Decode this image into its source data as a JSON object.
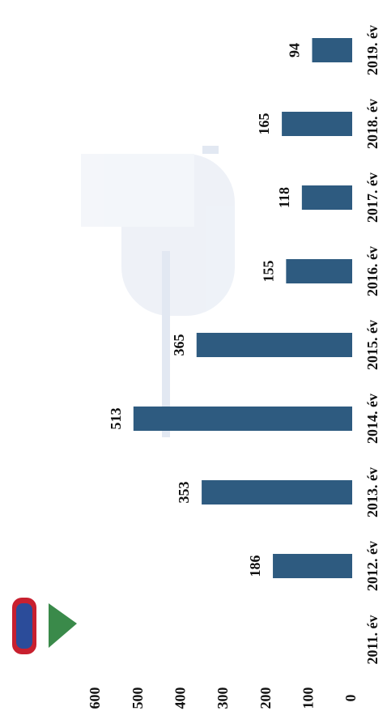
{
  "chart_data": {
    "type": "bar",
    "orientation": "rotated",
    "categories": [
      "2011. év",
      "2012. év",
      "2013. év",
      "2014. év",
      "2015. év",
      "2016. év",
      "2017. év",
      "2018. év",
      "2019. év"
    ],
    "values": [
      null,
      186,
      353,
      513,
      365,
      155,
      118,
      165,
      94
    ],
    "color": "#2e5b80",
    "ylim": [
      0,
      600
    ],
    "yticks": [
      0,
      100,
      200,
      300,
      400,
      500,
      600
    ]
  }
}
